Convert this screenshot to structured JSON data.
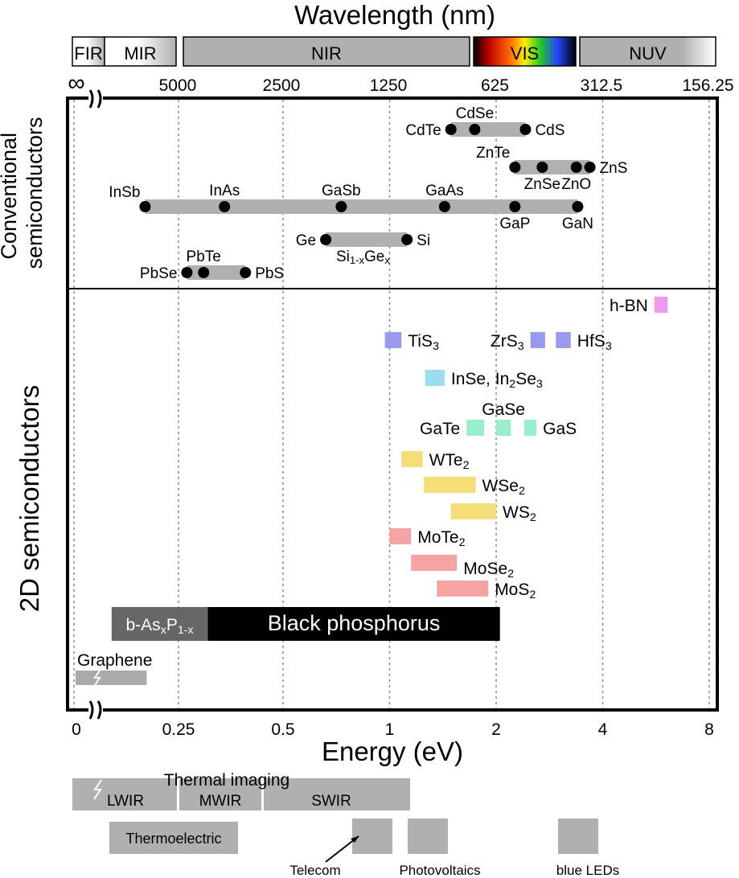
{
  "chart_data": {
    "type": "range",
    "title": "",
    "top_axis": {
      "label": "Wavelength (nm)",
      "ticks": [
        {
          "label": "∞",
          "energy": 0
        },
        {
          "label": "5000",
          "energy": 0.248
        },
        {
          "label": "2500",
          "energy": 0.496
        },
        {
          "label": "1250",
          "energy": 0.992
        },
        {
          "label": "625",
          "energy": 1.984
        },
        {
          "label": "312.5",
          "energy": 3.968
        },
        {
          "label": "156.25",
          "energy": 7.936
        }
      ],
      "bands": [
        {
          "label": "FIR",
          "from": 0,
          "to": 0.02
        },
        {
          "label": "MIR",
          "from": 0.02,
          "to": 0.41
        },
        {
          "label": "NIR",
          "from": 0.41,
          "to": 1.6
        },
        {
          "label": "VIS",
          "from": 1.6,
          "to": 3.2
        },
        {
          "label": "NUV",
          "from": 3.2,
          "to": 7.9
        }
      ]
    },
    "bottom_axis": {
      "label": "Energy (eV)",
      "ticks": [
        {
          "label": "0",
          "value": 0
        },
        {
          "label": "0.25",
          "value": 0.25
        },
        {
          "label": "0.5",
          "value": 0.5
        },
        {
          "label": "1",
          "value": 1
        },
        {
          "label": "2",
          "value": 2
        },
        {
          "label": "4",
          "value": 4
        },
        {
          "label": "8",
          "value": 8
        }
      ],
      "scale": "piecewise: linear 0-0.5 eV, log2 0.5-8 eV"
    },
    "sections": [
      "Conventional semiconductors",
      "2D semiconductors"
    ],
    "conventional_bars": [
      {
        "from": 1.49,
        "to": 2.42
      },
      {
        "from": 2.25,
        "to": 3.68
      },
      {
        "from": 0.17,
        "to": 3.4
      },
      {
        "from": 0.66,
        "to": 1.12
      },
      {
        "from": 0.27,
        "to": 0.41
      }
    ],
    "conventional_points": [
      {
        "label": "CdTe",
        "value": 1.49,
        "label_pos": "left"
      },
      {
        "label": "CdSe",
        "value": 1.74,
        "label_pos": "above"
      },
      {
        "label": "CdS",
        "value": 2.42,
        "label_pos": "right"
      },
      {
        "label": "ZnTe",
        "value": 2.26,
        "label_pos": "above-left"
      },
      {
        "label": "ZnSe",
        "value": 2.7,
        "label_pos": "below"
      },
      {
        "label": "ZnO",
        "value": 3.37,
        "label_pos": "below"
      },
      {
        "label": "ZnS",
        "value": 3.68,
        "label_pos": "right"
      },
      {
        "label": "InSb",
        "value": 0.17,
        "label_pos": "above-left"
      },
      {
        "label": "InAs",
        "value": 0.36,
        "label_pos": "above"
      },
      {
        "label": "GaSb",
        "value": 0.73,
        "label_pos": "above"
      },
      {
        "label": "GaAs",
        "value": 1.43,
        "label_pos": "above"
      },
      {
        "label": "GaP",
        "value": 2.26,
        "label_pos": "below"
      },
      {
        "label": "GaN",
        "value": 3.4,
        "label_pos": "below"
      },
      {
        "label": "Ge",
        "value": 0.66,
        "label_pos": "left"
      },
      {
        "label": "Si",
        "value": 1.12,
        "label_pos": "right"
      },
      {
        "label": "PbSe",
        "value": 0.27,
        "label_pos": "left"
      },
      {
        "label": "PbTe",
        "value": 0.31,
        "label_pos": "above"
      },
      {
        "label": "PbS",
        "value": 0.41,
        "label_pos": "right"
      }
    ],
    "alloy_label": {
      "label": "Si",
      "sub1": "1-x",
      "mid": "Ge",
      "sub2": "x"
    },
    "materials_2d": [
      {
        "label": "h-BN",
        "from": 5.6,
        "to": 6.1,
        "color": "#ee99ee"
      },
      {
        "label": "TiS",
        "sub": "3",
        "from": 0.97,
        "to": 1.08,
        "color": "#9999ee"
      },
      {
        "label": "ZrS",
        "sub": "3",
        "from": 2.5,
        "to": 2.75,
        "color": "#9999ee"
      },
      {
        "label": "HfS",
        "sub": "3",
        "from": 2.95,
        "to": 3.25,
        "color": "#9999ee"
      },
      {
        "label": "InSe, In",
        "sub": "2",
        "tail": "Se",
        "sub2": "3",
        "from": 1.26,
        "to": 1.43,
        "color": "#99ddee"
      },
      {
        "label": "GaTe",
        "from": 1.65,
        "to": 1.85,
        "color": "#99eecc"
      },
      {
        "label": "GaSe",
        "from": 2.0,
        "to": 2.2,
        "color": "#99eecc"
      },
      {
        "label": "GaS",
        "from": 2.4,
        "to": 2.6,
        "color": "#99eecc"
      },
      {
        "label": "WTe",
        "sub": "2",
        "from": 1.08,
        "to": 1.24,
        "color": "#f5dd77"
      },
      {
        "label": "WSe",
        "sub": "2",
        "from": 1.25,
        "to": 1.75,
        "color": "#f5dd77"
      },
      {
        "label": "WS",
        "sub": "2",
        "from": 1.49,
        "to": 2.0,
        "color": "#f5dd77"
      },
      {
        "label": "MoTe",
        "sub": "2",
        "from": 1.0,
        "to": 1.15,
        "color": "#f5a3a3"
      },
      {
        "label": "MoSe",
        "sub": "2",
        "from": 1.15,
        "to": 1.55,
        "color": "#f5a3a3"
      },
      {
        "label": "MoS",
        "sub": "2",
        "from": 1.36,
        "to": 1.9,
        "color": "#f5a3a3"
      }
    ],
    "phosphorus": [
      {
        "label": "b-As",
        "sub": "x",
        "tail": "P",
        "sub2": "1-x",
        "from": 0.09,
        "to": 0.32,
        "color": "#666666"
      },
      {
        "label": "Black phosphorus",
        "from": 0.32,
        "to": 2.05,
        "color": "#000000"
      }
    ],
    "graphene": {
      "label": "Graphene",
      "from": 0,
      "to": 0.17,
      "color": "#aaaaaa"
    },
    "applications": [
      {
        "label": "LWIR",
        "from": 0,
        "to": 0.2
      },
      {
        "label": "MWIR",
        "from": 0.2,
        "to": 0.36
      },
      {
        "label": "SWIR",
        "from": 0.36,
        "to": 1.14
      },
      {
        "label": "Thermal imaging",
        "from": 0,
        "to": 0.36
      },
      {
        "label": "Thermoelectric",
        "from": 0.08,
        "to": 0.39
      },
      {
        "label": "Telecom",
        "from": 0.75,
        "to": 1.0
      },
      {
        "label": "Photovoltaics",
        "from": 1.1,
        "to": 1.42
      },
      {
        "label": "blue LEDs",
        "from": 2.6,
        "to": 3.7
      }
    ],
    "colors": {
      "bar_gray": "#b0b0b0",
      "frame": "#000000",
      "grid": "#888888"
    }
  }
}
